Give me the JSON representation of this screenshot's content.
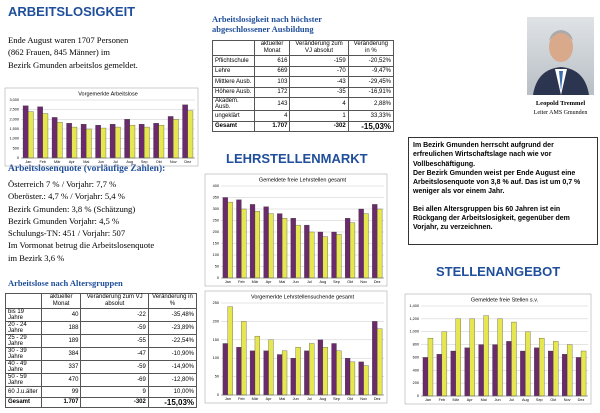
{
  "left": {
    "title": "ARBEITSLOSIGKEIT",
    "intro": [
      "Ende August waren 1707 Personen",
      "(862 Frauen, 845 Männer) im",
      "Bezirk Gmunden arbeitslos gemeldet."
    ],
    "quote_heading": "Arbeitslosenquote (vorläufige Zahlen):",
    "quote_lines": [
      "Österreich 7 % / Vorjahr: 7,7 %",
      "Oberöster.: 4,7 % / Vorjahr: 5,4 %",
      "Bezirk Gmunden: 3,8 % (Schätzung)",
      "Bezirk Gmunden Vorjahr: 4,5 %",
      "Schulungs-TN: 451 / Vorjahr: 507",
      "Im Vormonat betrug die Arbeitslosenquote",
      "im Bezirk 3,6 %"
    ],
    "age_heading": "Arbeitslose nach Altersgruppen"
  },
  "age_table": {
    "headers": [
      "aktueller Monat",
      "Veränderung zum VJ absolut",
      "Veränderung in %"
    ],
    "rows": [
      [
        "bis 19 Jahre",
        "40",
        "-22",
        "-35,48%"
      ],
      [
        "20 - 24 Jahre",
        "188",
        "-59",
        "-23,89%"
      ],
      [
        "25 - 29 Jahre",
        "189",
        "-55",
        "-22,54%"
      ],
      [
        "30 - 39 Jahre",
        "384",
        "-47",
        "-10,90%"
      ],
      [
        "40 - 49 Jahre",
        "337",
        "-59",
        "-14,90%"
      ],
      [
        "50 - 59 Jahre",
        "470",
        "-69",
        "-12,80%"
      ],
      [
        "60 J.u.älter",
        "99",
        "9",
        "10,00%"
      ],
      [
        "Gesamt",
        "1.707",
        "-302",
        "-15,03%"
      ]
    ]
  },
  "middle": {
    "heading": [
      "Arbeitslosigkeit nach höchster",
      "abgeschlossener Ausbildung"
    ],
    "section": "LEHRSTELLENMARKT"
  },
  "edu_table": {
    "headers": [
      "aktueller Monat",
      "Veränderung zum VJ absolut",
      "Veränderung in %"
    ],
    "rows": [
      [
        "Pflichtschule",
        "616",
        "-159",
        "-20,52%"
      ],
      [
        "Lehre",
        "669",
        "-70",
        "-9,47%"
      ],
      [
        "Mittlere Ausb.",
        "103",
        "-43",
        "-29,45%"
      ],
      [
        "Höhere Ausb.",
        "172",
        "-35",
        "-16,91%"
      ],
      [
        "Akadem. Ausb.",
        "143",
        "4",
        "2,88%"
      ],
      [
        "ungeklärt",
        "4",
        "1",
        "33,33%"
      ],
      [
        "Gesamt",
        "1.707",
        "-302",
        "-15,03%"
      ]
    ]
  },
  "right": {
    "name": "Leopold Tremmel",
    "role": "Leiter AMS Gmunden",
    "box": [
      "Im Bezirk Gmunden herrscht aufgrund der erfreulichen Wirtschaftslage nach wie vor Vollbeschäftigung.",
      "Der Bezirk Gmunden weist per Ende August eine Arbeitslosenquote von 3,8 % auf. Das ist um 0,7 % weniger als vor einem Jahr.",
      "Bei allen  Altersgruppen bis  60 Jahren ist ein Rückgang der Arbeitslosigkeit, gegenüber dem Vorjahr, zu verzeichnen."
    ],
    "section": "STELLENANGEBOT"
  },
  "chart_data": [
    {
      "type": "bar",
      "title": "Vorgemerkte Arbeitslose",
      "categories": [
        "Jan",
        "Feb",
        "Mär",
        "Apr",
        "Mai",
        "Jun",
        "Jul",
        "Aug",
        "Sep",
        "Okt",
        "Nov",
        "Dez"
      ],
      "series": [
        {
          "color": "#6b2a6b",
          "values": [
            2700,
            2650,
            2100,
            1800,
            1750,
            1700,
            1750,
            2000,
            1750,
            1800,
            2150,
            2750
          ]
        },
        {
          "color": "#e6e650",
          "values": [
            2400,
            2300,
            1850,
            1600,
            1500,
            1550,
            1600,
            1700,
            1600,
            1700,
            2000,
            2450
          ]
        }
      ],
      "ylim": [
        0,
        3000
      ],
      "yticks": [
        0,
        500,
        {
          "value": 1000,
          "label": "1,000"
        },
        {
          "value": 1500,
          "label": "1,500"
        },
        {
          "value": 2000,
          "label": "2,000"
        },
        {
          "value": 2500,
          "label": "2,500"
        },
        {
          "value": 3000,
          "label": "3,000"
        }
      ],
      "grid": true
    },
    {
      "type": "bar",
      "title": "Gemeldete freie Lehrstellen gesamt",
      "categories": [
        "Jan",
        "Feb",
        "Mär",
        "Apr",
        "Mai",
        "Jun",
        "Jul",
        "Aug",
        "Sep",
        "Okt",
        "Nov",
        "Dez"
      ],
      "series": [
        {
          "color": "#6b2a6b",
          "values": [
            350,
            340,
            320,
            310,
            280,
            260,
            230,
            200,
            200,
            260,
            300,
            320
          ]
        },
        {
          "color": "#e6e650",
          "values": [
            330,
            300,
            290,
            280,
            260,
            230,
            200,
            180,
            190,
            240,
            280,
            300
          ]
        }
      ],
      "ylim": [
        0,
        400
      ],
      "yticks": [
        0,
        50,
        100,
        150,
        200,
        250,
        300,
        350,
        400
      ],
      "grid": true
    },
    {
      "type": "bar",
      "title": "Vorgemerkte Lehrstellensuchende gesamt",
      "categories": [
        "Jan",
        "Feb",
        "Mär",
        "Apr",
        "Mai",
        "Jun",
        "Jul",
        "Aug",
        "Sep",
        "Okt",
        "Nov",
        "Dez"
      ],
      "series": [
        {
          "color": "#6b2a6b",
          "values": [
            140,
            130,
            120,
            120,
            110,
            100,
            120,
            150,
            140,
            100,
            90,
            200
          ]
        },
        {
          "color": "#e6e650",
          "values": [
            240,
            200,
            160,
            150,
            120,
            130,
            140,
            130,
            120,
            90,
            80,
            180
          ]
        }
      ],
      "ylim": [
        0,
        250
      ],
      "yticks": [
        0,
        50,
        100,
        150,
        200,
        250
      ],
      "grid": true
    },
    {
      "type": "bar",
      "title": "Gemeldete freie Stellen s.v.",
      "categories": [
        "Jan",
        "Feb",
        "Mär",
        "Apr",
        "Mai",
        "Jun",
        "Jul",
        "Aug",
        "Sep",
        "Okt",
        "Nov",
        "Dez"
      ],
      "series": [
        {
          "color": "#6b2a6b",
          "values": [
            600,
            650,
            700,
            750,
            800,
            800,
            850,
            700,
            750,
            700,
            650,
            600
          ]
        },
        {
          "color": "#e6e650",
          "values": [
            900,
            1000,
            1200,
            1200,
            1250,
            1200,
            1150,
            1000,
            900,
            850,
            800,
            700
          ]
        }
      ],
      "ylim": [
        0,
        1400
      ],
      "yticks": [
        0,
        200,
        400,
        600,
        800,
        {
          "value": 1000,
          "label": "1,000"
        },
        {
          "value": 1200,
          "label": "1,200"
        },
        {
          "value": 1400,
          "label": "1,400"
        }
      ],
      "grid": true
    }
  ]
}
